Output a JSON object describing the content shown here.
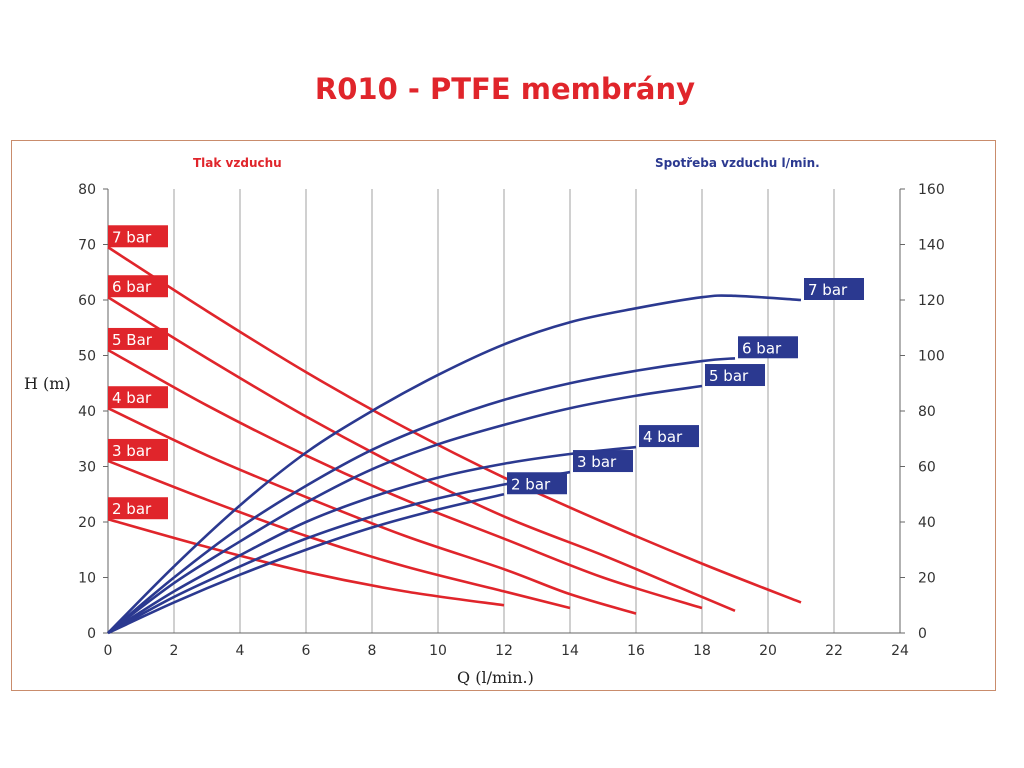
{
  "title": "R010 - PTFE membrány",
  "colors": {
    "title": "#e0252b",
    "red_series": "#e0252b",
    "blue_series": "#2b3990",
    "grid": "#a0a0a0",
    "frame": "#c98c6c"
  },
  "chart_data": {
    "type": "line",
    "xlabel": "Q (l/min.)",
    "ylabel_left": "H (m)",
    "left_axis_title": "Tlak vzduchu",
    "right_axis_title": "Spotřeba vzduchu l/min.",
    "xlim": [
      0,
      24
    ],
    "ylim_left": [
      0,
      80
    ],
    "ylim_right": [
      0,
      160
    ],
    "x_ticks": [
      "0",
      "2",
      "4",
      "6",
      "8",
      "10",
      "12",
      "14",
      "16",
      "18",
      "20",
      "22",
      "24"
    ],
    "y_left_ticks": [
      "0",
      "10",
      "20",
      "30",
      "40",
      "50",
      "60",
      "70",
      "80"
    ],
    "y_right_ticks": [
      "0",
      "20",
      "40",
      "60",
      "80",
      "100",
      "120",
      "140",
      "160"
    ],
    "grid": "vertical",
    "series_head": [
      {
        "name": "7 bar",
        "points": [
          [
            0,
            69.5
          ],
          [
            3,
            58
          ],
          [
            6,
            47
          ],
          [
            9,
            37
          ],
          [
            12,
            28
          ],
          [
            15,
            20
          ],
          [
            18,
            12.5
          ],
          [
            21,
            5.5
          ]
        ]
      },
      {
        "name": "6 bar",
        "points": [
          [
            0,
            60.5
          ],
          [
            3,
            49.5
          ],
          [
            6,
            39
          ],
          [
            9,
            29.5
          ],
          [
            12,
            21
          ],
          [
            15,
            14
          ],
          [
            17,
            9
          ],
          [
            19,
            4
          ]
        ]
      },
      {
        "name": "5 Bar",
        "points": [
          [
            0,
            51
          ],
          [
            3,
            41
          ],
          [
            6,
            32
          ],
          [
            9,
            24
          ],
          [
            12,
            17
          ],
          [
            15,
            10
          ],
          [
            18,
            4.5
          ]
        ]
      },
      {
        "name": "4 bar",
        "points": [
          [
            0,
            40.5
          ],
          [
            3,
            32
          ],
          [
            6,
            24.5
          ],
          [
            9,
            17.5
          ],
          [
            12,
            11.5
          ],
          [
            14,
            7
          ],
          [
            16,
            3.5
          ]
        ]
      },
      {
        "name": "3 bar",
        "points": [
          [
            0,
            31
          ],
          [
            3,
            24
          ],
          [
            6,
            17.5
          ],
          [
            9,
            12
          ],
          [
            12,
            7.5
          ],
          [
            14,
            4.5
          ]
        ]
      },
      {
        "name": "2 bar",
        "points": [
          [
            0,
            20.5
          ],
          [
            3,
            15.5
          ],
          [
            6,
            11
          ],
          [
            9,
            7.5
          ],
          [
            12,
            5
          ]
        ]
      }
    ],
    "series_air_consumption": [
      {
        "name": "7 bar",
        "points": [
          [
            0,
            0
          ],
          [
            2,
            24
          ],
          [
            4,
            46
          ],
          [
            6,
            65
          ],
          [
            8,
            80
          ],
          [
            10,
            93
          ],
          [
            12,
            104
          ],
          [
            14,
            112
          ],
          [
            16,
            117
          ],
          [
            18,
            121
          ],
          [
            19,
            121.5
          ],
          [
            21,
            120
          ]
        ]
      },
      {
        "name": "6 bar",
        "points": [
          [
            0,
            0
          ],
          [
            2,
            20
          ],
          [
            4,
            38
          ],
          [
            6,
            53
          ],
          [
            8,
            66
          ],
          [
            10,
            76
          ],
          [
            12,
            84
          ],
          [
            14,
            90
          ],
          [
            16,
            94.5
          ],
          [
            18,
            98
          ],
          [
            19,
            99
          ]
        ]
      },
      {
        "name": "5 bar",
        "points": [
          [
            0,
            0
          ],
          [
            2,
            18
          ],
          [
            4,
            33
          ],
          [
            6,
            47
          ],
          [
            8,
            59
          ],
          [
            10,
            68
          ],
          [
            12,
            75
          ],
          [
            14,
            81
          ],
          [
            16,
            85.5
          ],
          [
            18,
            89
          ]
        ]
      },
      {
        "name": "4 bar",
        "points": [
          [
            0,
            0
          ],
          [
            2,
            15
          ],
          [
            4,
            28
          ],
          [
            6,
            40
          ],
          [
            8,
            49
          ],
          [
            10,
            56
          ],
          [
            12,
            61
          ],
          [
            14,
            64.5
          ],
          [
            16,
            67
          ]
        ]
      },
      {
        "name": "3 bar",
        "points": [
          [
            0,
            0
          ],
          [
            2,
            13
          ],
          [
            4,
            24
          ],
          [
            6,
            34
          ],
          [
            8,
            42
          ],
          [
            10,
            48.5
          ],
          [
            12,
            53.5
          ],
          [
            14,
            58
          ]
        ]
      },
      {
        "name": "2 bar",
        "points": [
          [
            0,
            0
          ],
          [
            2,
            11
          ],
          [
            4,
            21
          ],
          [
            6,
            30
          ],
          [
            8,
            38
          ],
          [
            10,
            44.5
          ],
          [
            12,
            50
          ]
        ]
      }
    ]
  }
}
